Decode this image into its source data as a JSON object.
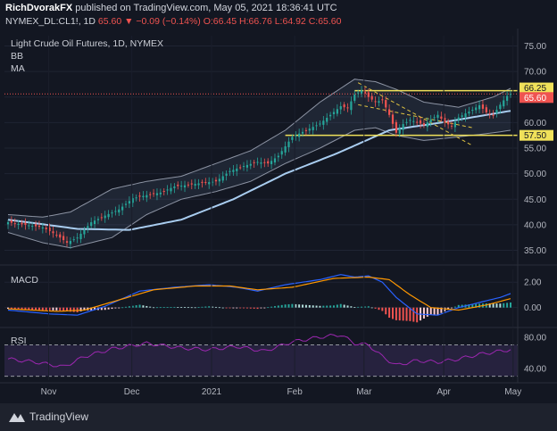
{
  "header": {
    "author": "RichDvorakFX",
    "published_text": "published on TradingView.com, May 05, 2021 18:36:41 UTC",
    "symbol": "NYMEX_DL:CL1!, 1D",
    "price": "65.60",
    "change": "▼ −0.09 (−0.14%)",
    "open": "O:66.45",
    "high": "H:66.76",
    "low": "L:64.92",
    "close": "C:65.60"
  },
  "legend": {
    "title": "Light Crude Oil Futures, 1D, NYMEX",
    "bb": "BB",
    "ma": "MA",
    "macd": "MACD",
    "rsi": "RSI"
  },
  "footer": {
    "brand": "TradingView"
  },
  "colors": {
    "background": "#131722",
    "up": "#26a69a",
    "down": "#ef5350",
    "ma": "#a9cdf0",
    "macd_line": "#2962ff",
    "signal_line": "#ff9800",
    "rsi_line": "#9c27b0",
    "level_line": "#f0e15a"
  },
  "chart_data": [
    {
      "type": "candlestick",
      "title": "Light Crude Oil Futures, 1D, NYMEX",
      "ylim": [
        33,
        77
      ],
      "y_ticks": [
        35,
        40,
        45,
        50,
        55,
        60,
        65,
        70,
        75
      ],
      "y_tick_labels": [
        "35.00",
        "40.00",
        "45.00",
        "50.00",
        "55.00",
        "60.00",
        "65.00",
        "70.00",
        "75.00"
      ],
      "x_tick_labels": [
        "Nov",
        "Dec",
        "2021",
        "Feb",
        "Mar",
        "Apr",
        "May"
      ],
      "price_labels": [
        {
          "value": 66.25,
          "label": "66.25",
          "style": "yellow"
        },
        {
          "value": 65.6,
          "label": "65.60",
          "style": "red"
        },
        {
          "value": 57.5,
          "label": "57.50",
          "style": "yellow"
        }
      ],
      "horizontal_levels": [
        66.25,
        57.5
      ],
      "close_points": [
        [
          0,
          40.5
        ],
        [
          5,
          40.0
        ],
        [
          10,
          39.5
        ],
        [
          14,
          38.0
        ],
        [
          17,
          36.5
        ],
        [
          20,
          37.5
        ],
        [
          24,
          40.5
        ],
        [
          28,
          41.8
        ],
        [
          32,
          43.0
        ],
        [
          36,
          45.2
        ],
        [
          40,
          45.8
        ],
        [
          44,
          46.3
        ],
        [
          48,
          47.5
        ],
        [
          52,
          47.8
        ],
        [
          56,
          48.2
        ],
        [
          60,
          48.5
        ],
        [
          64,
          50.5
        ],
        [
          68,
          51.5
        ],
        [
          72,
          52.3
        ],
        [
          75,
          52.0
        ],
        [
          78,
          53.5
        ],
        [
          82,
          57.2
        ],
        [
          86,
          58.5
        ],
        [
          90,
          59.8
        ],
        [
          93,
          61.5
        ],
        [
          96,
          63.2
        ],
        [
          98,
          62.8
        ],
        [
          100,
          65.5
        ],
        [
          102,
          66.3
        ],
        [
          104,
          65.0
        ],
        [
          106,
          64.0
        ],
        [
          108,
          64.4
        ],
        [
          110,
          61.5
        ],
        [
          112,
          58.0
        ],
        [
          114,
          59.7
        ],
        [
          116,
          60.5
        ],
        [
          118,
          60.1
        ],
        [
          120,
          59.5
        ],
        [
          122,
          60.6
        ],
        [
          124,
          61.5
        ],
        [
          126,
          60.0
        ],
        [
          128,
          59.3
        ],
        [
          130,
          61.0
        ],
        [
          132,
          61.8
        ],
        [
          134,
          62.5
        ],
        [
          136,
          63.4
        ],
        [
          138,
          62.0
        ],
        [
          140,
          61.5
        ],
        [
          142,
          63.5
        ],
        [
          144,
          65.2
        ],
        [
          145,
          65.6
        ]
      ],
      "ma_points": [
        [
          0,
          41.0
        ],
        [
          20,
          39.2
        ],
        [
          35,
          39.0
        ],
        [
          50,
          41.0
        ],
        [
          65,
          45.0
        ],
        [
          80,
          50.0
        ],
        [
          95,
          54.0
        ],
        [
          110,
          58.5
        ],
        [
          125,
          60.0
        ],
        [
          145,
          62.3
        ]
      ],
      "bb_upper_points": [
        [
          0,
          42.0
        ],
        [
          10,
          41.5
        ],
        [
          18,
          42.5
        ],
        [
          30,
          47.0
        ],
        [
          40,
          48.5
        ],
        [
          50,
          49.5
        ],
        [
          60,
          52.0
        ],
        [
          70,
          54.5
        ],
        [
          80,
          58.5
        ],
        [
          90,
          64.0
        ],
        [
          100,
          68.5
        ],
        [
          106,
          68.0
        ],
        [
          112,
          66.5
        ],
        [
          120,
          64.0
        ],
        [
          130,
          63.0
        ],
        [
          140,
          65.0
        ],
        [
          145,
          66.7
        ]
      ],
      "bb_lower_points": [
        [
          0,
          38.5
        ],
        [
          10,
          36.5
        ],
        [
          18,
          35.5
        ],
        [
          30,
          37.5
        ],
        [
          40,
          42.0
        ],
        [
          50,
          45.0
        ],
        [
          60,
          46.5
        ],
        [
          70,
          48.5
        ],
        [
          80,
          52.0
        ],
        [
          90,
          55.0
        ],
        [
          100,
          58.5
        ],
        [
          106,
          59.0
        ],
        [
          112,
          57.5
        ],
        [
          120,
          56.5
        ],
        [
          130,
          57.2
        ],
        [
          140,
          58.0
        ],
        [
          145,
          58.5
        ]
      ],
      "trendlines": [
        {
          "from": [
            101,
            67.8
          ],
          "to": [
            134,
            55.5
          ]
        },
        {
          "from": [
            101,
            63.5
          ],
          "to": [
            134,
            59.0
          ]
        }
      ]
    },
    {
      "type": "macd",
      "title": "MACD",
      "ylim": [
        -1.5,
        3.0
      ],
      "y_ticks": [
        0,
        2
      ],
      "y_tick_labels": [
        "0.00",
        "2.00"
      ],
      "macd_points": [
        [
          0,
          -0.2
        ],
        [
          12,
          -0.5
        ],
        [
          20,
          -0.6
        ],
        [
          28,
          0.1
        ],
        [
          38,
          1.3
        ],
        [
          48,
          1.6
        ],
        [
          58,
          1.8
        ],
        [
          66,
          1.6
        ],
        [
          72,
          1.3
        ],
        [
          80,
          1.8
        ],
        [
          90,
          2.2
        ],
        [
          96,
          2.6
        ],
        [
          100,
          2.4
        ],
        [
          104,
          2.5
        ],
        [
          108,
          2.0
        ],
        [
          112,
          0.8
        ],
        [
          118,
          -0.5
        ],
        [
          124,
          -0.6
        ],
        [
          130,
          0.0
        ],
        [
          136,
          0.4
        ],
        [
          142,
          0.8
        ],
        [
          145,
          1.1
        ]
      ],
      "signal_points": [
        [
          0,
          -0.1
        ],
        [
          14,
          -0.3
        ],
        [
          22,
          -0.2
        ],
        [
          32,
          0.6
        ],
        [
          42,
          1.4
        ],
        [
          54,
          1.7
        ],
        [
          64,
          1.7
        ],
        [
          72,
          1.4
        ],
        [
          82,
          1.6
        ],
        [
          94,
          2.3
        ],
        [
          104,
          2.4
        ],
        [
          110,
          2.2
        ],
        [
          116,
          1.0
        ],
        [
          122,
          0.0
        ],
        [
          130,
          -0.2
        ],
        [
          138,
          0.2
        ],
        [
          145,
          0.7
        ]
      ]
    },
    {
      "type": "rsi",
      "title": "RSI",
      "ylim": [
        25,
        90
      ],
      "y_ticks": [
        40,
        80
      ],
      "y_tick_labels": [
        "40.00",
        "80.00"
      ],
      "bands": [
        70,
        30
      ],
      "rsi_points": [
        [
          0,
          52
        ],
        [
          8,
          48
        ],
        [
          16,
          42
        ],
        [
          22,
          55
        ],
        [
          30,
          65
        ],
        [
          40,
          72
        ],
        [
          50,
          66
        ],
        [
          58,
          64
        ],
        [
          66,
          68
        ],
        [
          74,
          62
        ],
        [
          82,
          74
        ],
        [
          90,
          80
        ],
        [
          96,
          83
        ],
        [
          100,
          72
        ],
        [
          104,
          70
        ],
        [
          108,
          55
        ],
        [
          112,
          44
        ],
        [
          118,
          50
        ],
        [
          124,
          48
        ],
        [
          130,
          52
        ],
        [
          136,
          58
        ],
        [
          142,
          62
        ],
        [
          145,
          64
        ]
      ]
    }
  ]
}
